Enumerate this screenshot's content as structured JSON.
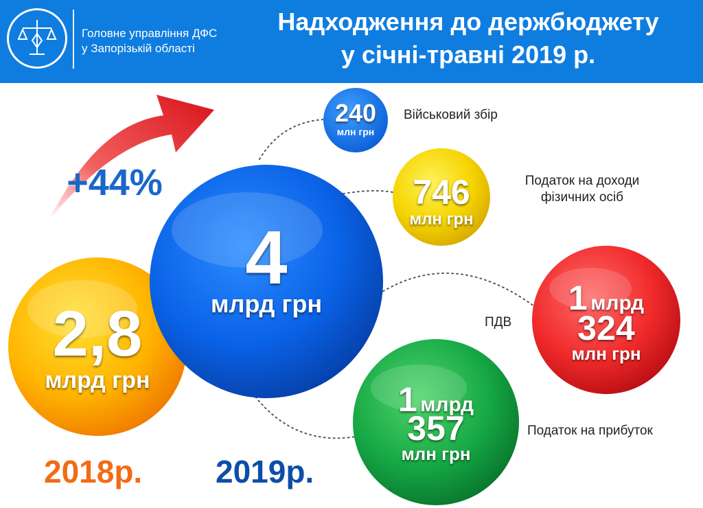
{
  "header": {
    "org_line1": "Головне управління ДФС",
    "org_line2": "у Запорізькій області",
    "title_line1": "Надходження до держбюджету",
    "title_line2": "у січні-травні 2019 р."
  },
  "growth": {
    "percent_text": "+44%"
  },
  "totals": {
    "y2018": {
      "value": "2,8",
      "unit": "млрд грн",
      "year": "2018р."
    },
    "y2019": {
      "value": "4",
      "unit": "млрд грн",
      "year": "2019р."
    }
  },
  "taxes": [
    {
      "name": "Військовий збір",
      "value": "240",
      "unit": "млн грн"
    },
    {
      "name_line1": "Податок на доходи",
      "name_line2": "фізичних осіб",
      "value": "746",
      "unit": "млн грн"
    },
    {
      "name": "ПДВ",
      "billions": "1",
      "billions_unit": "млрд",
      "value": "324",
      "unit": "млн грн"
    },
    {
      "name": "Податок на прибуток",
      "billions": "1",
      "billions_unit": "млрд",
      "value": "357",
      "unit": "млн грн"
    }
  ],
  "colors": {
    "header_blue": "#0f7de0",
    "orange_year": "#f26b16",
    "blue_year": "#0c4ea8",
    "growth_blue": "#1a67c9",
    "arrow_red": "#e41f23"
  }
}
